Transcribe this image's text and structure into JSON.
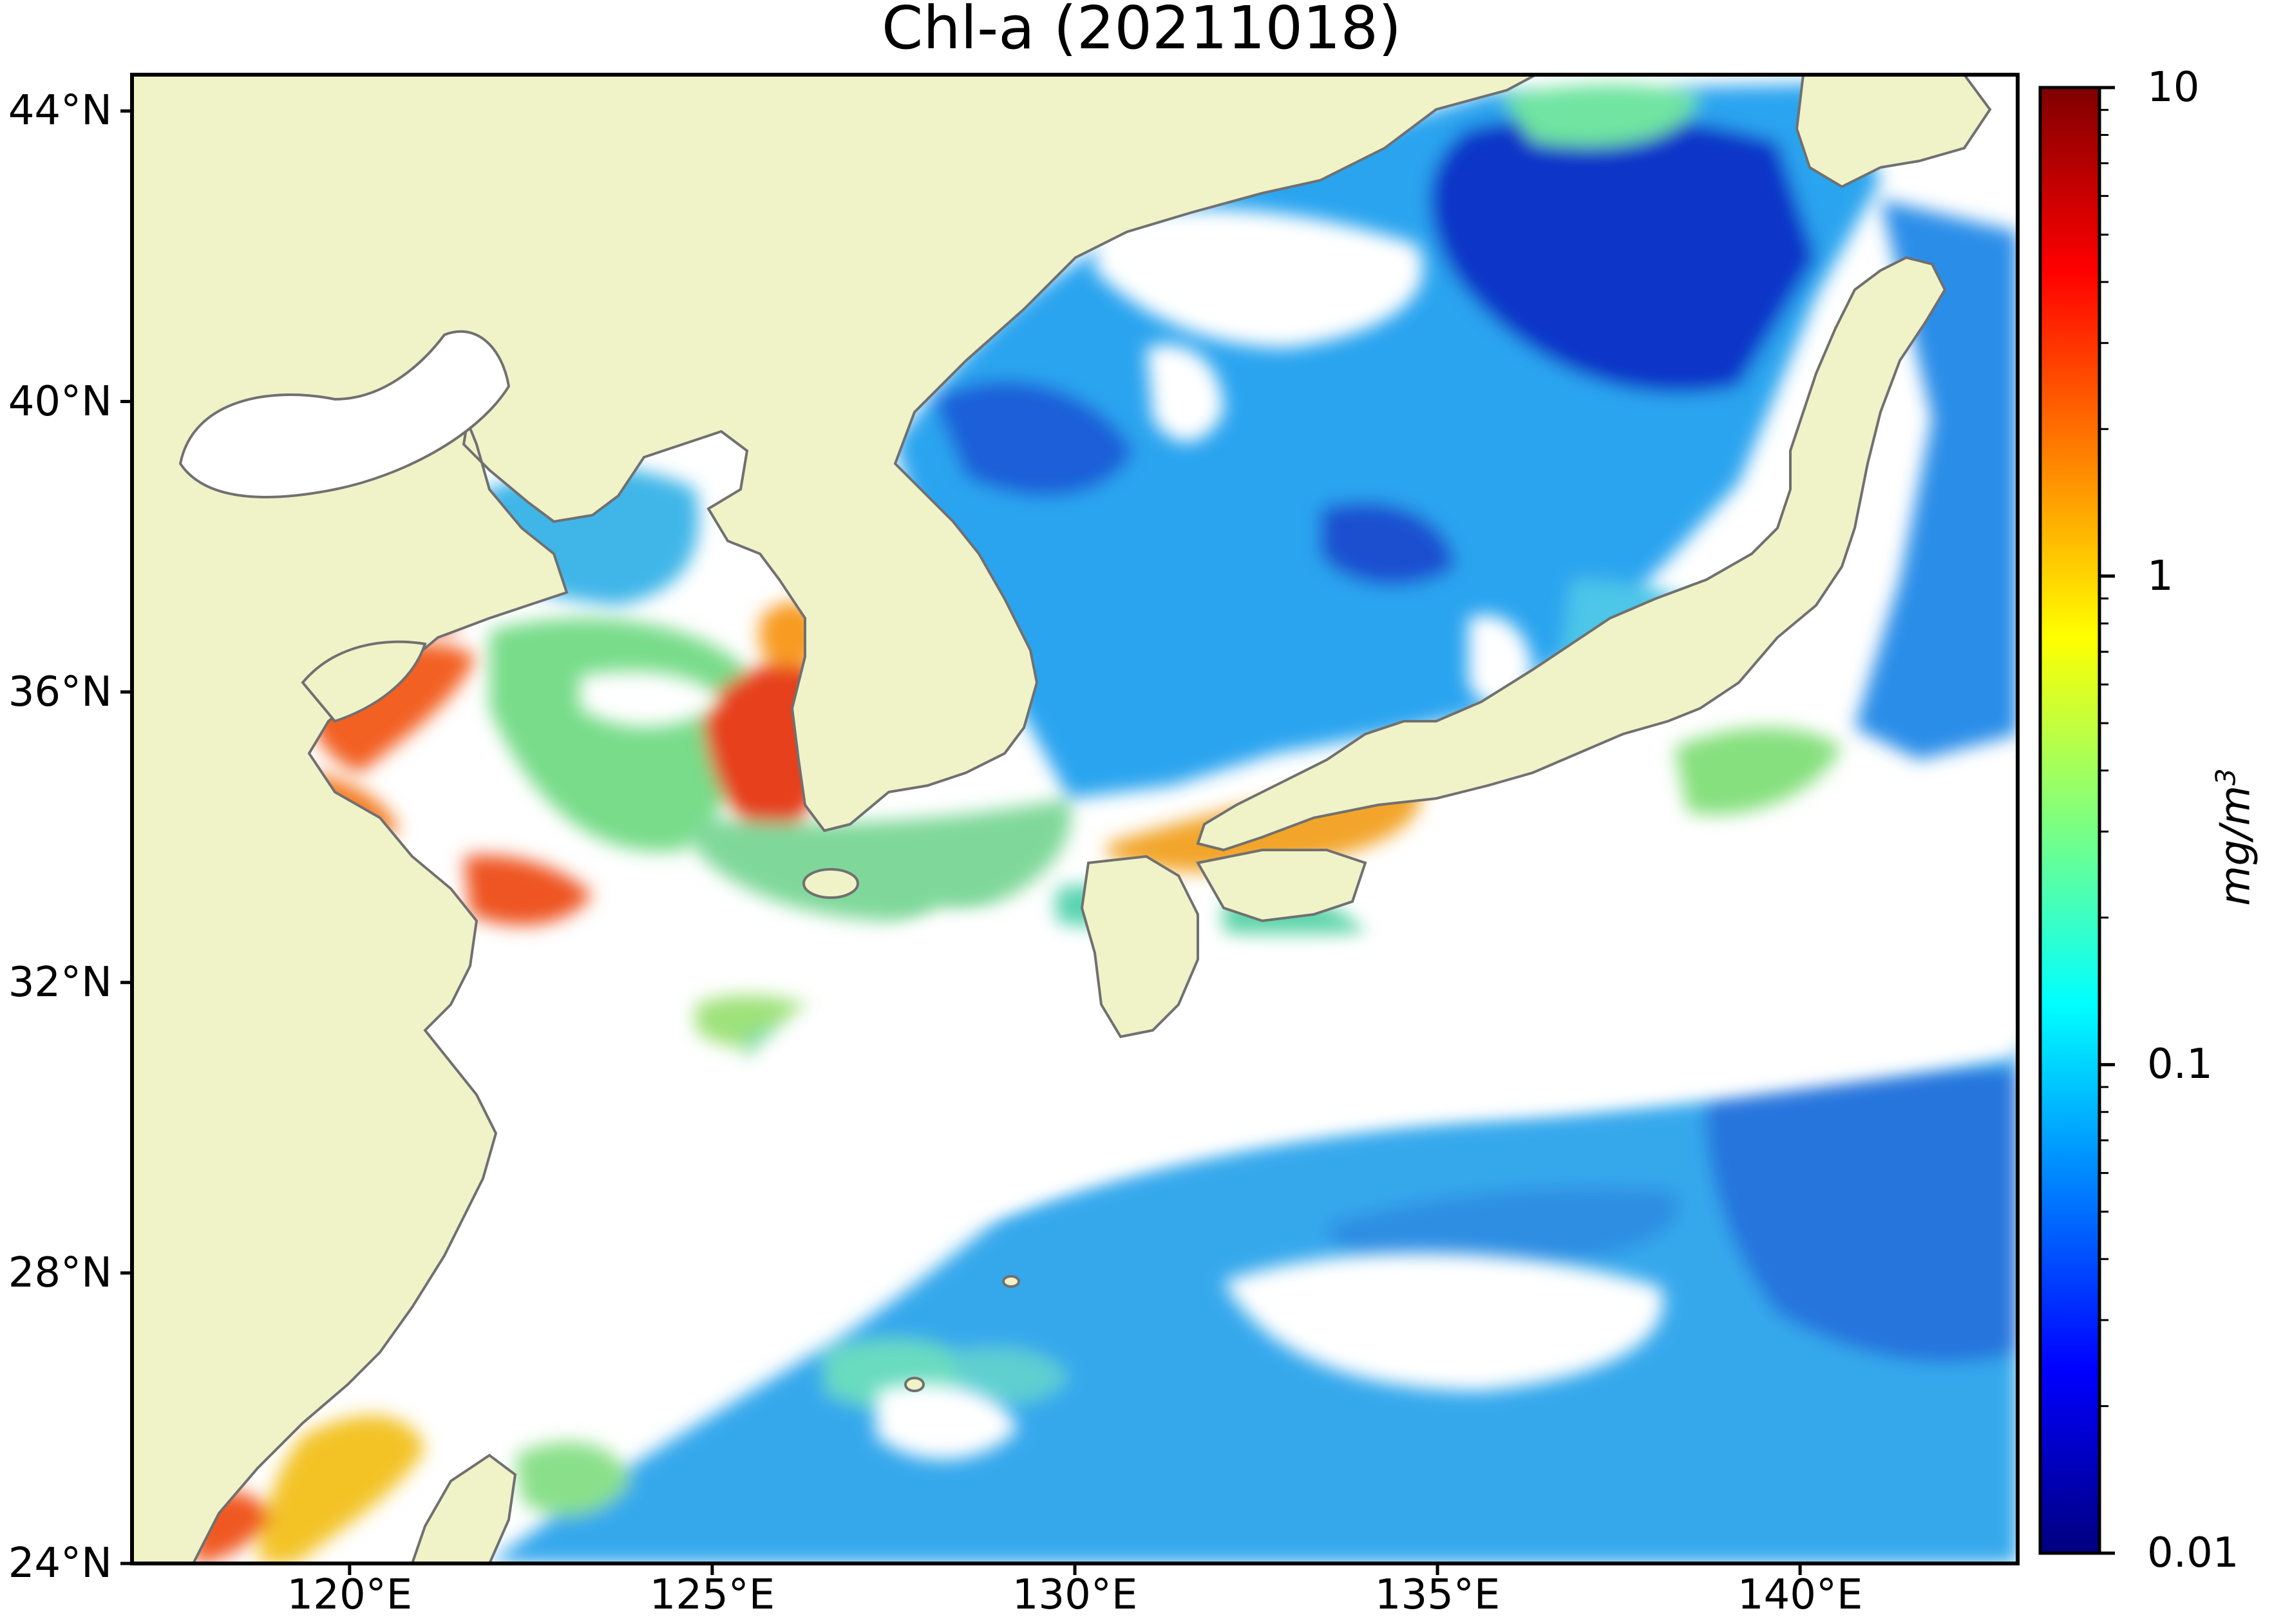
{
  "title": "Chl-a (20211018)",
  "map": {
    "lon_range": [
      117,
      143
    ],
    "lat_range": [
      24,
      44.5
    ],
    "lat_ticks": [
      {
        "value": 44,
        "label": "44°N"
      },
      {
        "value": 40,
        "label": "40°N"
      },
      {
        "value": 36,
        "label": "36°N"
      },
      {
        "value": 32,
        "label": "32°N"
      },
      {
        "value": 28,
        "label": "28°N"
      },
      {
        "value": 24,
        "label": "24°N"
      }
    ],
    "lon_ticks": [
      {
        "value": 120,
        "label": "120°E"
      },
      {
        "value": 125,
        "label": "125°E"
      },
      {
        "value": 130,
        "label": "130°E"
      },
      {
        "value": 135,
        "label": "135°E"
      },
      {
        "value": 140,
        "label": "140°E"
      }
    ],
    "colors": {
      "land": "#f0f2c8",
      "no_data": "#ffffff",
      "coastline": "#707070"
    }
  },
  "colorbar": {
    "label": "mg/m",
    "label_exp": "3",
    "scale": "log",
    "range": [
      0.01,
      10
    ],
    "colormap": "jet",
    "ticks": [
      {
        "value": 10,
        "label": "10"
      },
      {
        "value": 1,
        "label": "1"
      },
      {
        "value": 0.1,
        "label": "0.1"
      },
      {
        "value": 0.01,
        "label": "0.01"
      }
    ]
  }
}
